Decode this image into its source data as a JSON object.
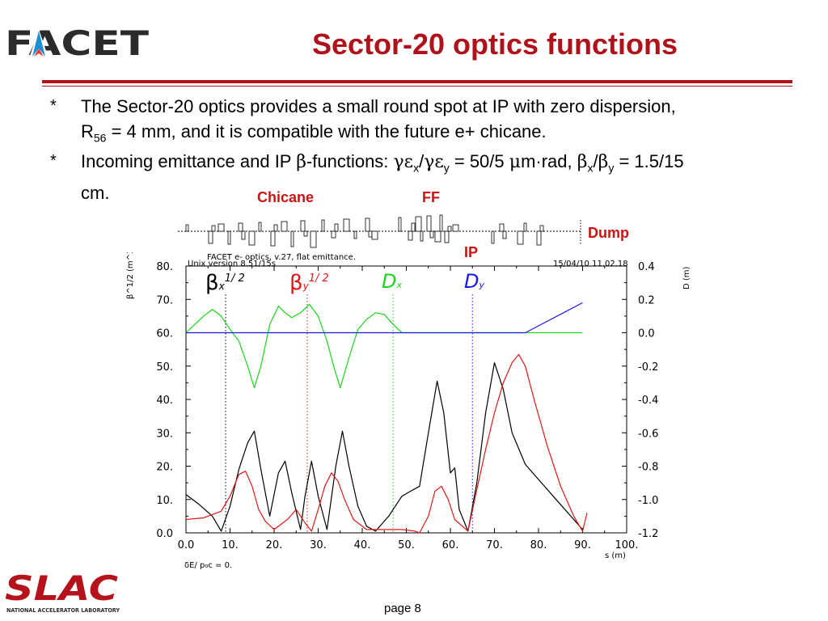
{
  "logo_top": "FACET",
  "logo_bottom": "SLAC",
  "logo_bottom_sub": "NATIONAL ACCELERATOR LABORATORY",
  "title": "Sector-20 optics functions",
  "bullets": [
    {
      "mark": "*",
      "line1": "The Sector-20 optics provides a small round spot at IP with zero dispersion,",
      "line2_pre": "R",
      "line2_sub": "56",
      "line2_post": " = 4 mm, and it is compatible with the future e+ chicane."
    },
    {
      "mark": "*",
      "text_a": "Incoming emittance and IP ",
      "text_b": "-functions: ",
      "text_c": " = 50/5 ",
      "text_d": "m·rad, ",
      "text_e": " = 1.5/15",
      "line2": "cm."
    }
  ],
  "labels": {
    "chicane": "Chicane",
    "ff": "FF",
    "dump": "Dump",
    "ip": "IP"
  },
  "page_label": "page 8",
  "chart_header": {
    "line1": "FACET e- optics, v.27, flat emittance.",
    "line2": "Unix version 8.51/15s",
    "date": "15/04/10  11.02.18"
  },
  "footer_text": "δE/ p₀c  =  0.",
  "colors": {
    "title": "#b0121b",
    "bx": "#000000",
    "by": "#e01818",
    "dx": "#18d818",
    "dy": "#1818e8"
  },
  "chart_data": {
    "type": "line",
    "xlabel": "s (m)",
    "ylabel_left": "β^1/2 (m^1/2)",
    "ylabel_right": "D (m)",
    "xlim": [
      0,
      100
    ],
    "ylim_left": [
      0,
      80
    ],
    "ylim_right": [
      -1.2,
      0.4
    ],
    "x_ticks": [
      "0.0",
      "10.",
      "20.",
      "30.",
      "40.",
      "50.",
      "60.",
      "70.",
      "80.",
      "90.",
      "100."
    ],
    "y_ticks_left": [
      "0.0",
      "10.",
      "20.",
      "30.",
      "40.",
      "50.",
      "60.",
      "70.",
      "80."
    ],
    "y_ticks_right": [
      "-1.2",
      "-1.0",
      "-0.8",
      "-0.6",
      "-0.4",
      "-0.2",
      "0.0",
      "0.2",
      "0.4"
    ],
    "series": [
      {
        "name": "βx 1/2",
        "axis": "left",
        "color": "#000000",
        "x": [
          0,
          3,
          6,
          8,
          10,
          12,
          14,
          15.5,
          17,
          19,
          21,
          22.5,
          24,
          26,
          27,
          28.5,
          30,
          32,
          34,
          35.5,
          37,
          39,
          41,
          43,
          46,
          49,
          51,
          53,
          55,
          57,
          58.5,
          60,
          61,
          62,
          64,
          66,
          68,
          70,
          72,
          74,
          77,
          80,
          84,
          88,
          90
        ],
        "y": [
          11.5,
          8.5,
          5,
          0.5,
          8,
          19,
          27,
          30.5,
          19,
          5,
          18,
          21.5,
          12,
          1,
          11,
          21.5,
          11,
          1,
          20,
          30.5,
          20,
          8,
          2,
          0.5,
          5,
          11,
          12.5,
          14,
          30,
          45.5,
          36,
          18,
          19.5,
          7,
          0.5,
          15,
          36,
          51,
          43,
          30,
          20.5,
          16,
          10,
          4,
          1
        ]
      },
      {
        "name": "βy 1/2",
        "axis": "left",
        "color": "#e01818",
        "x": [
          0,
          4,
          8,
          10,
          12,
          13.5,
          15,
          16.5,
          18,
          20,
          23,
          25,
          27,
          28.5,
          30,
          31.5,
          33,
          34.5,
          36,
          38,
          41,
          45,
          49,
          52,
          53,
          55,
          56.5,
          58,
          59.5,
          61,
          64,
          66,
          68,
          70,
          72,
          74,
          75.5,
          77,
          79,
          82,
          85,
          88,
          90,
          91
        ],
        "y": [
          4,
          4.5,
          6.5,
          11,
          17.5,
          18.5,
          14,
          7,
          3.5,
          1,
          4,
          7,
          3,
          0.5,
          7,
          14,
          18,
          15.5,
          10,
          4,
          1,
          1,
          1,
          0.5,
          0,
          5,
          12.5,
          14,
          10,
          4,
          0.5,
          13,
          25,
          36,
          45,
          51,
          53.5,
          50,
          40,
          26,
          14,
          5,
          0.5,
          6
        ]
      },
      {
        "name": "Dx",
        "axis": "right",
        "color": "#18d818",
        "x": [
          0,
          2,
          4,
          6,
          8,
          10,
          12,
          14,
          15.5,
          17,
          19,
          21,
          22.5,
          24,
          26,
          28,
          30,
          32,
          33.5,
          35,
          37,
          39,
          41,
          43,
          45,
          47,
          49,
          52,
          60,
          70,
          80,
          90
        ],
        "y": [
          0,
          0.05,
          0.1,
          0.14,
          0.1,
          0.02,
          -0.05,
          -0.2,
          -0.33,
          -0.2,
          0.05,
          0.16,
          0.12,
          0.09,
          0.12,
          0.17,
          0.1,
          -0.05,
          -0.2,
          -0.33,
          -0.15,
          0.02,
          0.08,
          0.12,
          0.11,
          0.05,
          0,
          0,
          0,
          0,
          0,
          0
        ]
      },
      {
        "name": "Dy",
        "axis": "right",
        "color": "#1818e8",
        "x": [
          0,
          20,
          40,
          60,
          77,
          90
        ],
        "y": [
          0,
          0,
          0,
          0,
          0,
          0.18
        ]
      }
    ],
    "markers": [
      {
        "name": "βx 1/2",
        "x": 9,
        "color": "#000000",
        "style": "dotted"
      },
      {
        "name": "βy 1/2",
        "x": 27.5,
        "color": "#e01818",
        "style": "dotted"
      },
      {
        "name": "Dx",
        "x": 47,
        "color": "#18d818",
        "style": "dotted"
      },
      {
        "name": "Dy",
        "x": 65,
        "color": "#1818e8",
        "style": "dotted"
      }
    ],
    "grid": false
  }
}
